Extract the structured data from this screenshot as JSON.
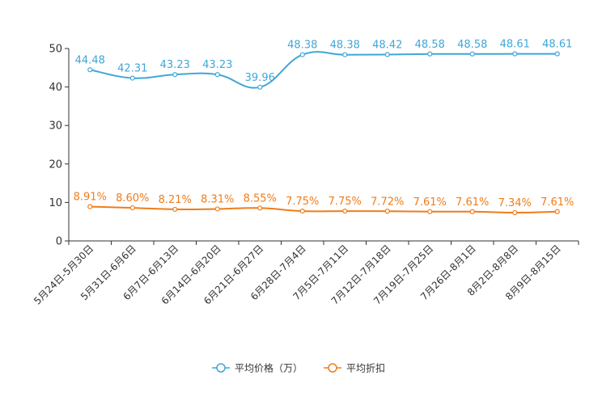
{
  "chart_data": {
    "type": "line",
    "title": "",
    "xlabel": "",
    "ylabel": "",
    "ylim": [
      0,
      50
    ],
    "yticks": [
      0,
      10,
      20,
      30,
      40,
      50
    ],
    "grid": false,
    "legend_position": "bottom-center",
    "categories": [
      "5月24日-5月30日",
      "5月31日-6月6日",
      "6月7日-6月13日",
      "6月14日-6月20日",
      "6月21日-6月27日",
      "6月28日-7月4日",
      "7月5日-7月11日",
      "7月12日-7月18日",
      "7月19日-7月25日",
      "7月26日-8月1日",
      "8月2日-8月8日",
      "8月9日-8月15日"
    ],
    "series": [
      {
        "name": "平均价格（万）",
        "color": "#3fa7d6",
        "values": [
          44.48,
          42.31,
          43.23,
          43.23,
          39.96,
          48.38,
          48.38,
          48.42,
          48.58,
          48.58,
          48.61,
          48.61
        ],
        "labels": [
          "44.48",
          "42.31",
          "43.23",
          "43.23",
          "39.96",
          "48.38",
          "48.38",
          "48.42",
          "48.58",
          "48.58",
          "48.61",
          "48.61"
        ]
      },
      {
        "name": "平均折扣",
        "color": "#f07c1a",
        "values": [
          8.91,
          8.6,
          8.21,
          8.31,
          8.55,
          7.75,
          7.75,
          7.72,
          7.61,
          7.61,
          7.34,
          7.61
        ],
        "labels": [
          "8.91%",
          "8.60%",
          "8.21%",
          "8.31%",
          "8.55%",
          "7.75%",
          "7.75%",
          "7.72%",
          "7.61%",
          "7.61%",
          "7.34%",
          "7.61%"
        ]
      }
    ]
  }
}
